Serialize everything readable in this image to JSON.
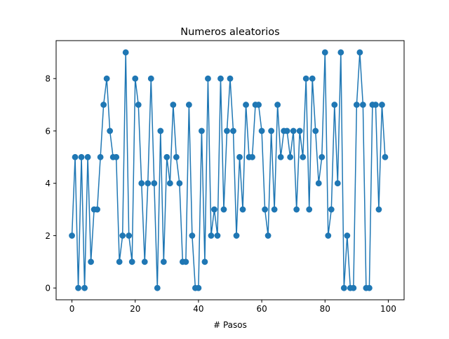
{
  "chart_data": {
    "type": "line",
    "title": "Numeros aleatorios",
    "xlabel": "# Pasos",
    "ylabel": "",
    "xlim": [
      -5,
      105
    ],
    "ylim": [
      -0.45,
      9.45
    ],
    "xticks": [
      0,
      20,
      40,
      60,
      80,
      100
    ],
    "yticks": [
      0,
      2,
      4,
      6,
      8
    ],
    "grid": false,
    "marker": "circle",
    "series": [
      {
        "color": "#1f77b4",
        "x": [
          0,
          1,
          2,
          3,
          4,
          5,
          6,
          7,
          8,
          9,
          10,
          11,
          12,
          13,
          14,
          15,
          16,
          17,
          18,
          19,
          20,
          21,
          22,
          23,
          24,
          25,
          26,
          27,
          28,
          29,
          30,
          31,
          32,
          33,
          34,
          35,
          36,
          37,
          38,
          39,
          40,
          41,
          42,
          43,
          44,
          45,
          46,
          47,
          48,
          49,
          50,
          51,
          52,
          53,
          54,
          55,
          56,
          57,
          58,
          59,
          60,
          61,
          62,
          63,
          64,
          65,
          66,
          67,
          68,
          69,
          70,
          71,
          72,
          73,
          74,
          75,
          76,
          77,
          78,
          79,
          80,
          81,
          82,
          83,
          84,
          85,
          86,
          87,
          88,
          89,
          90,
          91,
          92,
          93,
          94,
          95,
          96,
          97,
          98,
          99
        ],
        "values": [
          2,
          5,
          0,
          5,
          0,
          5,
          1,
          3,
          3,
          5,
          7,
          8,
          6,
          5,
          5,
          1,
          2,
          9,
          2,
          1,
          8,
          7,
          4,
          1,
          4,
          8,
          4,
          0,
          6,
          1,
          5,
          4,
          7,
          5,
          4,
          1,
          1,
          7,
          2,
          0,
          0,
          6,
          1,
          8,
          2,
          3,
          2,
          8,
          3,
          6,
          8,
          6,
          2,
          5,
          3,
          7,
          5,
          5,
          7,
          7,
          6,
          3,
          2,
          6,
          3,
          7,
          5,
          6,
          6,
          5,
          6,
          3,
          6,
          5,
          8,
          3,
          8,
          6,
          4,
          5,
          9,
          2,
          3,
          7,
          4,
          9,
          0,
          2,
          0,
          0,
          7,
          9,
          7,
          0,
          0,
          7,
          7,
          3,
          7,
          5
        ]
      }
    ]
  }
}
